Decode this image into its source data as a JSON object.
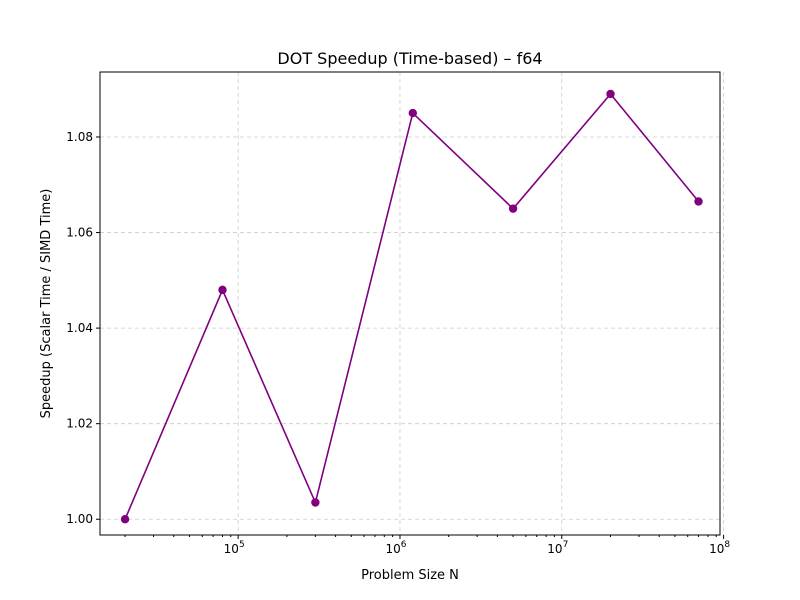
{
  "chart_data": {
    "type": "line",
    "title": "DOT Speedup (Time-based) – f64",
    "xlabel": "Problem Size N",
    "ylabel": "Speedup (Scalar Time / SIMD Time)",
    "xscale": "log",
    "xlim": [
      14000,
      95000000
    ],
    "ylim": [
      0.9967,
      1.0936
    ],
    "grid": true,
    "x_ticks": [
      {
        "value": 100000,
        "base": "10",
        "exp": "5"
      },
      {
        "value": 1000000,
        "base": "10",
        "exp": "6"
      },
      {
        "value": 10000000,
        "base": "10",
        "exp": "7"
      },
      {
        "value": 100000000,
        "base": "10",
        "exp": "8"
      }
    ],
    "y_ticks": [
      {
        "value": 1.0,
        "label": "1.00"
      },
      {
        "value": 1.02,
        "label": "1.02"
      },
      {
        "value": 1.04,
        "label": "1.04"
      },
      {
        "value": 1.06,
        "label": "1.06"
      },
      {
        "value": 1.08,
        "label": "1.08"
      }
    ],
    "series": [
      {
        "color": "#800080",
        "marker": "circle",
        "x": [
          20000,
          80000,
          300000,
          1200000,
          5000000,
          20000000,
          70000000
        ],
        "y": [
          1.0,
          1.048,
          1.0035,
          1.085,
          1.065,
          1.089,
          1.0665
        ]
      }
    ]
  }
}
